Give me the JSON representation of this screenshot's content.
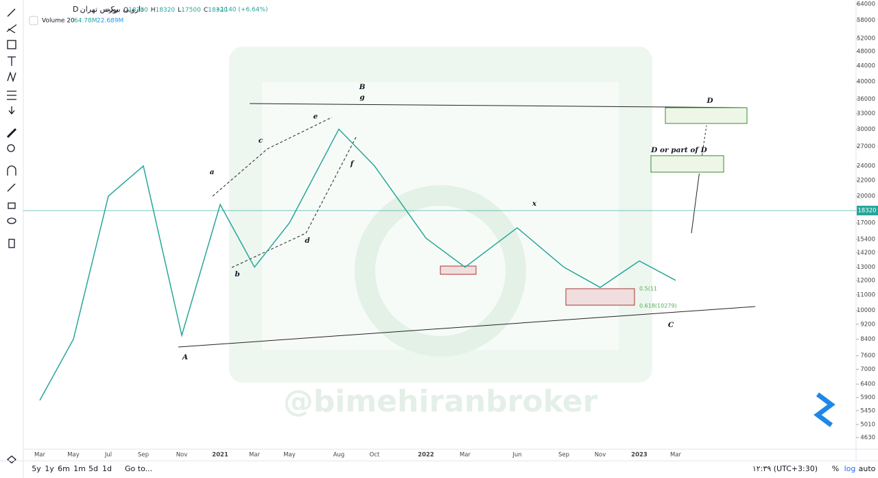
{
  "header": {
    "symbol": "دارویی برکت",
    "exchange": "بورس تهران",
    "interval": "D",
    "ohlc": [
      {
        "label": "O",
        "value": 18280
      },
      {
        "label": "H",
        "value": 18320
      },
      {
        "label": "L",
        "value": 17500
      },
      {
        "label": "C",
        "value": 18320
      }
    ],
    "change": "+1140 (+6.64%)",
    "volume_label": "Volume 20",
    "volume": "64.78M",
    "volume_ma": "22.689M"
  },
  "chart_data": {
    "type": "line",
    "color": "#26a69a",
    "log": true,
    "categories": [
      "Mar",
      "May",
      "Jul",
      "Sep",
      "Nov",
      "2021",
      "Mar",
      "May",
      "Aug",
      "Oct",
      "2022",
      "Mar",
      "Jun",
      "Sep",
      "Nov",
      "2023",
      "Mar"
    ],
    "values": [
      5800,
      8400,
      20000,
      24000,
      8600,
      19000,
      13000,
      17000,
      30000,
      24000,
      15500,
      13000,
      16500,
      13000,
      11500,
      13500,
      12000
    ],
    "last_price": 18320,
    "ylim": [
      4630,
      64000
    ],
    "yticks": [
      64000,
      58000,
      52000,
      48000,
      44000,
      40000,
      36000,
      33000,
      30000,
      27000,
      24000,
      22000,
      20000,
      17000,
      15400,
      14200,
      13000,
      12000,
      11000,
      10000,
      9200,
      8400,
      7600,
      7000,
      6400,
      5900,
      5450,
      5010,
      4630
    ]
  },
  "annotations": [
    "A",
    "a",
    "b",
    "c",
    "d",
    "e",
    "f",
    "B",
    "g",
    "x",
    "C",
    "D",
    "D or part of D",
    "0.5(11",
    "0.618(10279)"
  ],
  "watermark": "@bimehiranbroker",
  "toolbar": {
    "ranges": [
      "5y",
      "1y",
      "6m",
      "1m",
      "5d",
      "1d"
    ],
    "goto": "Go to...",
    "time": "۱۲:۳۹ (UTC+3:30)",
    "options": [
      "%",
      "log",
      "auto"
    ]
  }
}
